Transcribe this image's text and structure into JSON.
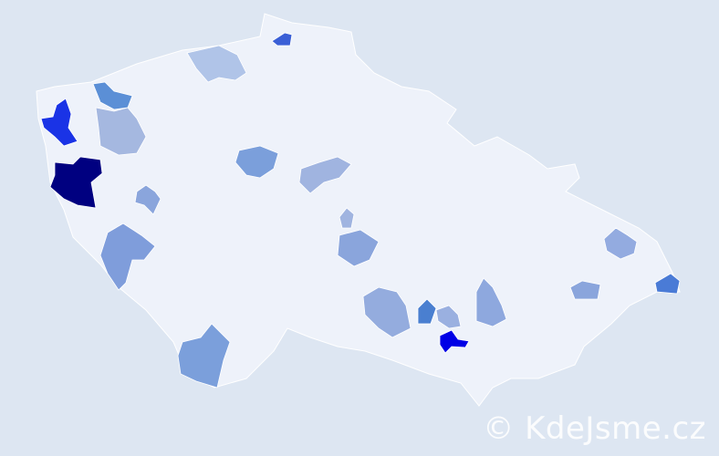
{
  "map": {
    "background": "#dde6f2",
    "land_color": "#eef2fa",
    "border_color": "#ffffff",
    "regions": [
      {
        "color": "#000080"
      },
      {
        "color": "#1a33e6"
      },
      {
        "color": "#5b8fd6"
      },
      {
        "color": "#a5b8e0"
      },
      {
        "color": "#b0c4e8"
      },
      {
        "color": "#3a5fd6"
      },
      {
        "color": "#7b9fdb"
      },
      {
        "color": "#a0b4e0"
      },
      {
        "color": "#8aa5dc"
      },
      {
        "color": "#7f9ddb"
      },
      {
        "color": "#7b9fdb"
      },
      {
        "color": "#a0b4e0"
      },
      {
        "color": "#8aa5dc"
      },
      {
        "color": "#94acde"
      },
      {
        "color": "#4a7fd0"
      },
      {
        "color": "#9ab0e0"
      },
      {
        "color": "#0000e6"
      },
      {
        "color": "#8ea8de"
      },
      {
        "color": "#8aa5dc"
      },
      {
        "color": "#4a7bd6"
      },
      {
        "color": "#93abe0"
      }
    ]
  },
  "watermark": "© KdeJsme.cz"
}
